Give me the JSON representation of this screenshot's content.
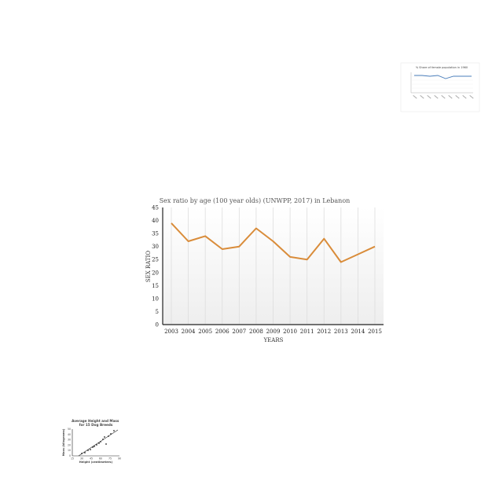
{
  "colors": {
    "line": "#d98c3a",
    "axis": "#222222",
    "gridline": "#dddddd",
    "plot_bg_top": "#ffffff",
    "plot_bg_bottom": "#eeeeee",
    "thumb_line": "#4a7ebb"
  },
  "chart_data": [
    {
      "type": "line",
      "title": "Sex ratio by age (100 year olds) (UNWPP, 2017) in Lebanon",
      "xlabel": "YEARS",
      "ylabel": "SEX RATIO",
      "x": [
        "2003",
        "2004",
        "2005",
        "2006",
        "2007",
        "2008",
        "2009",
        "2010",
        "2011",
        "2012",
        "2013",
        "2014",
        "2015"
      ],
      "series": [
        {
          "values": [
            39,
            32,
            34,
            29,
            30,
            37,
            32,
            26,
            25,
            33,
            24,
            27,
            30
          ]
        }
      ],
      "ylim": [
        0,
        45
      ],
      "yticks": [
        0,
        5,
        10,
        15,
        20,
        25,
        30,
        35,
        40,
        45
      ],
      "grid": "vertical lines at each year",
      "legend": "none"
    },
    {
      "type": "line",
      "title": "% Share of female population in 1960",
      "xlabel": "",
      "ylabel": "",
      "legend": "none"
    },
    {
      "type": "scatter",
      "title": "Average Height and Mass for 15 Dog Breeds",
      "xlabel": "Height (centimeters)",
      "ylabel": "Mass (kilograms)",
      "xticks": [
        "15",
        "30",
        "45",
        "60",
        "75",
        "90"
      ],
      "yticks": [
        "0",
        "10",
        "20",
        "30",
        "40",
        "50"
      ],
      "legend": "none"
    }
  ]
}
